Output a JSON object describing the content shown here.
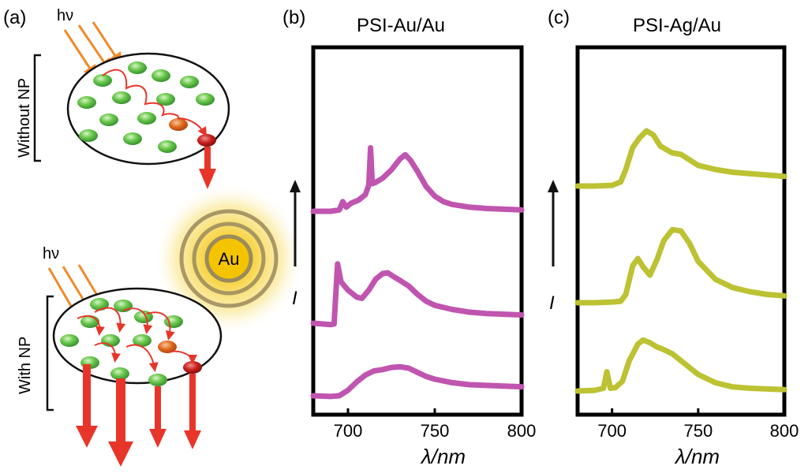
{
  "panel_a": {
    "label": "(a)",
    "photon_top": "hν",
    "photon_bottom": "hν",
    "bracket_top_label": "Without NP",
    "bracket_bottom_label": "With NP",
    "nanoparticle_label": "Au"
  },
  "colors": {
    "magenta_trace": "#c055b0",
    "yellow_trace": "#bcc232",
    "green_particle": "#5cc24a",
    "orange_particle": "#e06a1e",
    "red_particle": "#c8201e",
    "arrow_red": "#e8352a",
    "photon_orange": "#f08a2a",
    "au_gold": "#f5c400"
  },
  "chart_data": [
    {
      "panel_label": "(b)",
      "title": "PSI-Au/Au",
      "type": "line",
      "xlabel": "λ/nm",
      "ylabel": "I",
      "xlim": [
        680,
        800
      ],
      "xticks": [
        "700",
        "750",
        "800"
      ],
      "ylim": [
        0,
        10
      ],
      "series": [
        {
          "x": [
            680,
            690,
            695,
            697,
            699,
            702,
            706,
            710,
            712,
            713,
            714,
            716,
            720,
            725,
            730,
            733,
            736,
            740,
            745,
            750,
            755,
            760,
            770,
            780,
            790,
            800
          ],
          "values": [
            5.6,
            5.6,
            5.7,
            6.3,
            5.9,
            6.2,
            6.4,
            6.8,
            7.5,
            10.2,
            7.6,
            7.7,
            8.0,
            8.6,
            9.4,
            9.7,
            9.3,
            8.5,
            7.4,
            6.7,
            6.3,
            6.1,
            5.9,
            5.8,
            5.75,
            5.7
          ]
        },
        {
          "x": [
            680,
            690,
            692,
            694,
            696,
            700,
            705,
            708,
            712,
            716,
            720,
            723,
            726,
            730,
            735,
            740,
            745,
            750,
            760,
            770,
            780,
            790,
            800
          ],
          "values": [
            1.9,
            1.8,
            1.85,
            6.2,
            4.9,
            4.3,
            3.8,
            3.7,
            4.3,
            5.1,
            5.5,
            5.55,
            5.3,
            5.0,
            4.6,
            4.0,
            3.5,
            3.2,
            2.9,
            2.7,
            2.6,
            2.55,
            2.5
          ]
        },
        {
          "x": [
            680,
            690,
            695,
            700,
            705,
            710,
            715,
            720,
            725,
            730,
            735,
            740,
            745,
            750,
            760,
            770,
            780,
            790,
            800
          ],
          "values": [
            0.2,
            0.15,
            0.2,
            0.6,
            1.2,
            1.7,
            2.0,
            2.1,
            2.25,
            2.3,
            2.2,
            1.9,
            1.6,
            1.4,
            1.15,
            1.0,
            0.95,
            0.9,
            0.85
          ]
        }
      ]
    },
    {
      "panel_label": "(c)",
      "title": "PSI-Ag/Au",
      "type": "line",
      "xlabel": "λ/nm",
      "ylabel": "I",
      "xlim": [
        680,
        800
      ],
      "xticks": [
        "700",
        "750",
        "800"
      ],
      "ylim": [
        0,
        10
      ],
      "series": [
        {
          "x": [
            680,
            690,
            700,
            705,
            708,
            712,
            716,
            720,
            724,
            728,
            735,
            740,
            745,
            750,
            760,
            770,
            780,
            790,
            800
          ],
          "values": [
            6.0,
            6.0,
            6.05,
            6.3,
            7.2,
            8.8,
            9.5,
            10.0,
            9.7,
            8.9,
            8.4,
            8.3,
            7.9,
            7.5,
            7.2,
            7.0,
            6.9,
            6.8,
            6.7
          ]
        },
        {
          "x": [
            680,
            690,
            700,
            705,
            708,
            712,
            715,
            718,
            722,
            726,
            730,
            735,
            740,
            745,
            750,
            760,
            770,
            780,
            790,
            800
          ],
          "values": [
            2.8,
            2.8,
            2.85,
            2.9,
            3.4,
            5.5,
            6.0,
            5.4,
            4.8,
            5.9,
            7.3,
            8.1,
            8.0,
            7.1,
            5.8,
            4.5,
            3.9,
            3.6,
            3.4,
            3.3
          ]
        },
        {
          "x": [
            680,
            690,
            695,
            697,
            699,
            702,
            706,
            710,
            715,
            718,
            722,
            726,
            730,
            735,
            740,
            745,
            750,
            760,
            770,
            780,
            790,
            800
          ],
          "values": [
            0.3,
            0.35,
            0.5,
            1.7,
            0.5,
            0.55,
            1.0,
            2.5,
            3.7,
            4.0,
            3.8,
            3.5,
            3.3,
            3.0,
            2.5,
            2.0,
            1.5,
            0.9,
            0.6,
            0.5,
            0.45,
            0.4
          ]
        }
      ]
    }
  ]
}
